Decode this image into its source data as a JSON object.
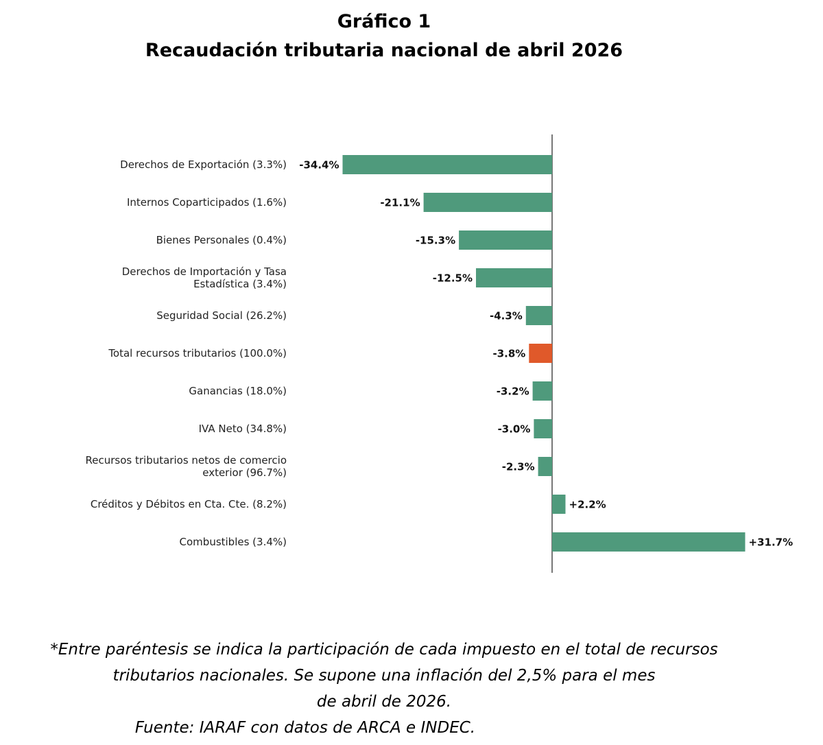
{
  "header": {
    "title": "Gráfico 1",
    "subtitle": "Recaudación tributaria nacional de abril 2026"
  },
  "chart_data": {
    "type": "bar",
    "orientation": "horizontal",
    "categories": [
      "Derechos de Exportación (3.3%)",
      "Internos Coparticipados (1.6%)",
      "Bienes Personales (0.4%)",
      "Derechos de Importación y Tasa Estadística (3.4%)",
      "Seguridad Social (26.2%)",
      "Total recursos tributarios (100.0%)",
      "Ganancias (18.0%)",
      "IVA Neto (34.8%)",
      "Recursos tributarios netos de comercio exterior (96.7%)",
      "Créditos y Débitos en Cta. Cte. (8.2%)",
      "Combustibles (3.4%)"
    ],
    "category_lines": [
      [
        "Derechos de Exportación (3.3%)"
      ],
      [
        "Internos Coparticipados (1.6%)"
      ],
      [
        "Bienes Personales (0.4%)"
      ],
      [
        "Derechos de Importación y Tasa",
        "Estadística (3.4%)"
      ],
      [
        "Seguridad Social (26.2%)"
      ],
      [
        "Total recursos tributarios (100.0%)"
      ],
      [
        "Ganancias (18.0%)"
      ],
      [
        "IVA Neto (34.8%)"
      ],
      [
        "Recursos tributarios netos de comercio",
        "exterior (96.7%)"
      ],
      [
        "Créditos y Débitos en Cta. Cte. (8.2%)"
      ],
      [
        "Combustibles (3.4%)"
      ]
    ],
    "values": [
      -34.4,
      -21.1,
      -15.3,
      -12.5,
      -4.3,
      -3.8,
      -3.2,
      -3.0,
      -2.3,
      2.2,
      31.7
    ],
    "value_labels": [
      "-34.4%",
      "-21.1%",
      "-15.3%",
      "-12.5%",
      "-4.3%",
      "-3.8%",
      "-3.2%",
      "-3.0%",
      "-2.3%",
      "+2.2%",
      "+31.7%"
    ],
    "highlight_index": 5,
    "colors": {
      "bar": "#4f9a7c",
      "highlight": "#e0592a",
      "axis": "#555555"
    },
    "xlim": [
      -34.4,
      31.7
    ],
    "xlabel": "",
    "ylabel": "",
    "grid": false,
    "legend": "none"
  },
  "footer": {
    "note_line1": "*Entre paréntesis se indica la participación de cada impuesto en el total de recursos",
    "note_line2": "tributarios nacionales. Se supone una inflación del 2,5% para el mes",
    "note_line3": "de abril de 2026.",
    "source": "Fuente: IARAF con datos de ARCA e INDEC."
  }
}
